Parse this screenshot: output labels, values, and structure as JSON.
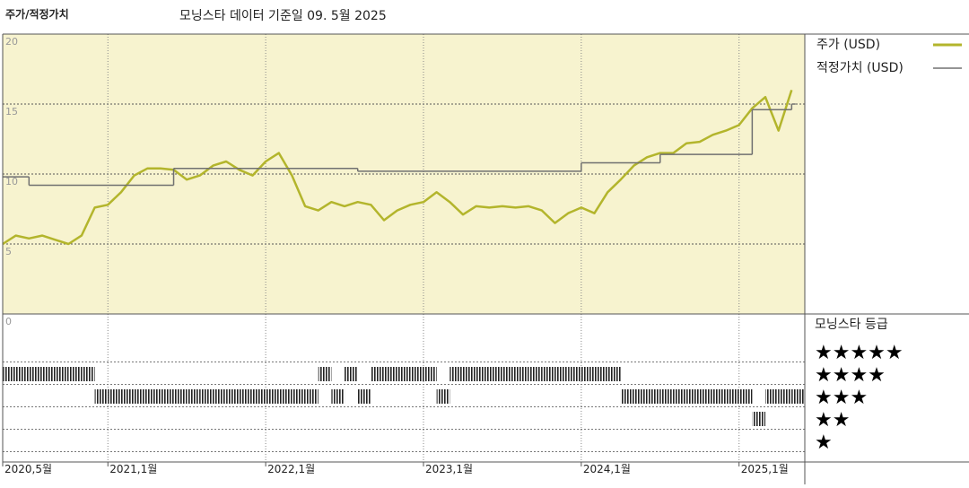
{
  "chart_data": {
    "type": "line",
    "title": "주가/적정가치",
    "subtitle": "모닝스타 데이터 기준일 09. 5월 2025",
    "x": [
      "2020-05",
      "2020-06",
      "2020-07",
      "2020-08",
      "2020-09",
      "2020-10",
      "2020-11",
      "2020-12",
      "2021-01",
      "2021-02",
      "2021-03",
      "2021-04",
      "2021-05",
      "2021-06",
      "2021-07",
      "2021-08",
      "2021-09",
      "2021-10",
      "2021-11",
      "2021-12",
      "2022-01",
      "2022-02",
      "2022-03",
      "2022-04",
      "2022-05",
      "2022-06",
      "2022-07",
      "2022-08",
      "2022-09",
      "2022-10",
      "2022-11",
      "2022-12",
      "2023-01",
      "2023-02",
      "2023-03",
      "2023-04",
      "2023-05",
      "2023-06",
      "2023-07",
      "2023-08",
      "2023-09",
      "2023-10",
      "2023-11",
      "2023-12",
      "2024-01",
      "2024-02",
      "2024-03",
      "2024-04",
      "2024-05",
      "2024-06",
      "2024-07",
      "2024-08",
      "2024-09",
      "2024-10",
      "2024-11",
      "2024-12",
      "2025-01",
      "2025-02",
      "2025-03",
      "2025-04",
      "2025-05"
    ],
    "series": [
      {
        "name": "주가 (USD)",
        "color": "#b3b52c",
        "values": [
          5.0,
          5.6,
          5.4,
          5.6,
          5.3,
          5.0,
          5.6,
          7.6,
          7.8,
          8.7,
          9.9,
          10.4,
          10.4,
          10.3,
          9.6,
          9.9,
          10.6,
          10.9,
          10.3,
          9.9,
          10.9,
          11.5,
          9.9,
          7.7,
          7.4,
          8.0,
          7.7,
          8.0,
          7.8,
          6.7,
          7.4,
          7.8,
          8.0,
          8.7,
          8.0,
          7.1,
          7.7,
          7.6,
          7.7,
          7.6,
          7.7,
          7.4,
          6.5,
          7.2,
          7.6,
          7.2,
          8.7,
          9.6,
          10.6,
          11.2,
          11.5,
          11.5,
          12.2,
          12.3,
          12.8,
          13.1,
          13.5,
          14.7,
          15.5,
          13.1,
          16.0
        ]
      },
      {
        "name": "적정가치 (USD)",
        "color": "#707070",
        "step": true,
        "x": [
          "2020-05",
          "2020-07",
          "2021-06",
          "2022-08",
          "2024-01",
          "2024-07",
          "2025-02",
          "2025-05"
        ],
        "values": [
          9.8,
          9.2,
          10.4,
          10.2,
          10.8,
          11.4,
          14.6,
          15.0
        ]
      }
    ],
    "xlim": [
      "2020-05",
      "2025-06"
    ],
    "xticks": [
      {
        "value": "2020-05",
        "label": "2020,5월"
      },
      {
        "value": "2021-01",
        "label": "2021,1월"
      },
      {
        "value": "2022-01",
        "label": "2022,1월"
      },
      {
        "value": "2023-01",
        "label": "2023,1월"
      },
      {
        "value": "2024-01",
        "label": "2024,1월"
      },
      {
        "value": "2025-01",
        "label": "2025,1월"
      }
    ],
    "ylim": [
      0,
      20
    ],
    "yticks": [
      0,
      5,
      10,
      15,
      20
    ],
    "grid": true,
    "ratings": {
      "title": "모닝스타 등급",
      "levels": [
        {
          "value": 5,
          "label": "★★★★★"
        },
        {
          "value": 4,
          "label": "★★★★"
        },
        {
          "value": 3,
          "label": "★★★"
        },
        {
          "value": 2,
          "label": "★★"
        },
        {
          "value": 1,
          "label": "★"
        }
      ],
      "values": [
        4,
        4,
        4,
        4,
        4,
        4,
        4,
        3,
        3,
        3,
        3,
        3,
        3,
        3,
        3,
        3,
        3,
        3,
        3,
        3,
        3,
        3,
        3,
        3,
        4,
        3,
        4,
        3,
        4,
        4,
        4,
        4,
        4,
        3,
        4,
        4,
        4,
        4,
        4,
        4,
        4,
        4,
        4,
        4,
        4,
        4,
        4,
        3,
        3,
        3,
        3,
        3,
        3,
        3,
        3,
        3,
        3,
        2,
        3,
        3,
        3
      ]
    }
  }
}
